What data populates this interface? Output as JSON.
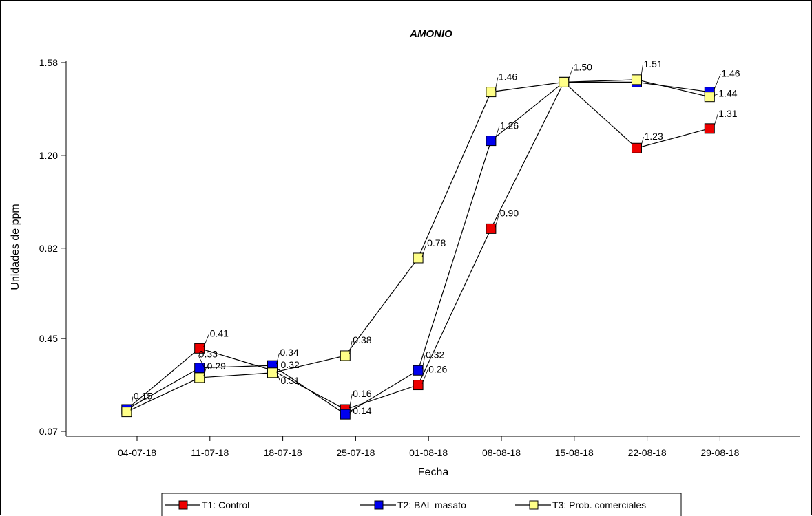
{
  "chart_data": {
    "type": "line",
    "title": "AMONIO",
    "xlabel": "Fecha",
    "ylabel": "Unidades de ppm",
    "x_ticks": [
      "04-07-18",
      "11-07-18",
      "18-07-18",
      "25-07-18",
      "01-08-18",
      "08-08-18",
      "15-08-18",
      "22-08-18",
      "29-08-18"
    ],
    "y_ticks": [
      "1.58",
      "1.20",
      "0.82",
      "0.45",
      "0.07"
    ],
    "ylim": [
      0.07,
      1.58
    ],
    "grid": false,
    "legend_position": "bottom",
    "series": [
      {
        "name": "T1: Control",
        "color": "#ee0000",
        "x": [
          "03-07-18",
          "10-07-18",
          "17-07-18",
          "24-07-18",
          "31-07-18",
          "07-08-18",
          "14-08-18",
          "21-08-18",
          "28-08-18"
        ],
        "values": [
          0.16,
          0.41,
          0.32,
          0.16,
          0.26,
          0.9,
          1.5,
          1.23,
          1.31
        ],
        "labels": [
          "",
          "0.41",
          "",
          "0.16",
          "0.26",
          "0.90",
          "",
          "1.23",
          "1.31"
        ]
      },
      {
        "name": "T2: BAL masato",
        "color": "#0000ee",
        "x": [
          "03-07-18",
          "10-07-18",
          "17-07-18",
          "24-07-18",
          "31-07-18",
          "07-08-18",
          "14-08-18",
          "21-08-18",
          "28-08-18"
        ],
        "values": [
          0.16,
          0.33,
          0.34,
          0.14,
          0.32,
          1.26,
          1.5,
          1.5,
          1.46
        ],
        "labels": [
          "",
          "0.33",
          "0.34",
          "0.14",
          "0.32",
          "1.26",
          "",
          "",
          "1.46"
        ]
      },
      {
        "name": "T3: Prob. comerciales",
        "color": "#ffff88",
        "x": [
          "03-07-18",
          "10-07-18",
          "17-07-18",
          "24-07-18",
          "31-07-18",
          "07-08-18",
          "14-08-18",
          "21-08-18",
          "28-08-18"
        ],
        "values": [
          0.15,
          0.29,
          0.31,
          0.38,
          0.78,
          1.46,
          1.5,
          1.51,
          1.44
        ],
        "labels": [
          "0.15",
          "0.29",
          "0.31",
          "0.38",
          "0.78",
          "1.46",
          "1.50",
          "1.51",
          "1.44"
        ]
      }
    ],
    "extra_labels": [
      "0.32"
    ]
  }
}
